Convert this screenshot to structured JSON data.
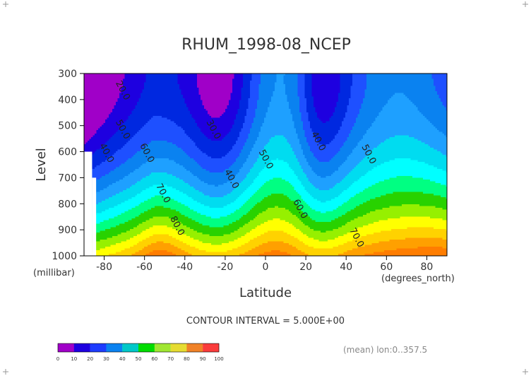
{
  "chart_data": {
    "type": "heatmap",
    "title": "RHUM_1998-08_NCEP",
    "xlabel": "Latitude",
    "xunits": "(degrees_north)",
    "ylabel": "Level",
    "yunits": "(millibar)",
    "xlim": [
      -90,
      90
    ],
    "ylim": [
      1000,
      300
    ],
    "x_ticks": [
      -80,
      -60,
      -40,
      -20,
      0,
      20,
      40,
      60,
      80
    ],
    "y_ticks": [
      300,
      400,
      500,
      600,
      700,
      800,
      900,
      1000
    ],
    "contour_interval_text": "CONTOUR INTERVAL = 5.000E+00",
    "mean_text": "(mean) lon:0..357.5",
    "contour_labels": [
      {
        "text": "20.0",
        "lat": -72,
        "level": 370
      },
      {
        "text": "30.0",
        "lat": -27,
        "level": 520
      },
      {
        "text": "40.0",
        "lat": -80,
        "level": 610
      },
      {
        "text": "40.0",
        "lat": -18,
        "level": 710
      },
      {
        "text": "40.0",
        "lat": 25,
        "level": 565
      },
      {
        "text": "50.0",
        "lat": -72,
        "level": 520
      },
      {
        "text": "50.0",
        "lat": -1,
        "level": 635
      },
      {
        "text": "50.0",
        "lat": 50,
        "level": 615
      },
      {
        "text": "60.0",
        "lat": -60,
        "level": 610
      },
      {
        "text": "60.0",
        "lat": 16,
        "level": 825
      },
      {
        "text": "70.0",
        "lat": -52,
        "level": 765
      },
      {
        "text": "70.0",
        "lat": 44,
        "level": 935
      },
      {
        "text": "80.0",
        "lat": -45,
        "level": 890
      }
    ],
    "colorbar": {
      "labels": [
        "0",
        "10",
        "20",
        "30",
        "40",
        "50",
        "60",
        "70",
        "80",
        "90",
        "100"
      ],
      "colors": [
        "#a000c8",
        "#1e00e0",
        "#1e3cff",
        "#0a82f0",
        "#00c8c8",
        "#00dc00",
        "#a0e632",
        "#e6dc32",
        "#f08228",
        "#fa3c3c"
      ]
    },
    "min_bounds": [
      {
        "min": 95,
        "color": "#f00000"
      },
      {
        "min": 90,
        "color": "#fa3c3c"
      },
      {
        "min": 85,
        "color": "#ff5a00"
      },
      {
        "min": 80,
        "color": "#ff7d00"
      },
      {
        "min": 75,
        "color": "#ffa000"
      },
      {
        "min": 70,
        "color": "#ffd200"
      },
      {
        "min": 65,
        "color": "#ffff00"
      },
      {
        "min": 60,
        "color": "#96f000"
      },
      {
        "min": 55,
        "color": "#28d200"
      },
      {
        "min": 50,
        "color": "#00ff82"
      },
      {
        "min": 45,
        "color": "#00ffff"
      },
      {
        "min": 40,
        "color": "#00dcf0"
      },
      {
        "min": 35,
        "color": "#1ea0ff"
      },
      {
        "min": 30,
        "color": "#0a82f0"
      },
      {
        "min": 25,
        "color": "#1e50ff"
      },
      {
        "min": 20,
        "color": "#0028e0"
      },
      {
        "min": 15,
        "color": "#1e00e0"
      },
      {
        "min": 0,
        "color": "#a000c8"
      }
    ]
  }
}
